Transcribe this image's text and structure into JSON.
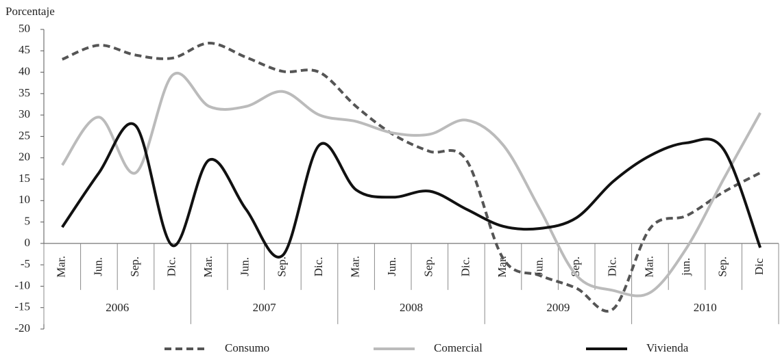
{
  "chart_data": {
    "type": "line",
    "y_label": "Porcentaje",
    "categories": [
      "Mar.",
      "Jun.",
      "Sep.",
      "Dic.",
      "Mar.",
      "Jun.",
      "Sep.",
      "Dic.",
      "Mar.",
      "Jun.",
      "Sep.",
      "Dic.",
      "Mar.",
      "Jun.",
      "Sep.",
      "Dic.",
      "Mar.",
      "jun.",
      "Sep.",
      "Dic"
    ],
    "years": [
      "2006",
      "2007",
      "2008",
      "2009",
      "2010"
    ],
    "series": [
      {
        "name": "Consumo",
        "color": "#555555",
        "dashed": true,
        "values": [
          43,
          46.3,
          44,
          43.3,
          46.8,
          43.5,
          40.2,
          40,
          32,
          25.5,
          21.5,
          19.5,
          -3.5,
          -7.5,
          -10.5,
          -15.3,
          3.5,
          6.5,
          12,
          16.5
        ]
      },
      {
        "name": "Comercial",
        "color": "#bbbbbb",
        "dashed": false,
        "values": [
          18.3,
          29.5,
          16.5,
          39.3,
          32,
          32,
          35.5,
          30,
          28.5,
          25.8,
          25.5,
          28.8,
          23,
          8,
          -7.5,
          -11,
          -11.5,
          -1,
          15,
          30.5
        ]
      },
      {
        "name": "Vivienda",
        "color": "#111111",
        "dashed": false,
        "values": [
          3.8,
          16.5,
          27.5,
          -0.5,
          19.5,
          8,
          -2.8,
          23,
          12.5,
          10.8,
          12.2,
          8,
          4,
          3.5,
          6,
          14.5,
          20.5,
          23.5,
          22,
          -1
        ]
      }
    ],
    "ylim": [
      -20,
      50
    ],
    "yticks": [
      50,
      45,
      40,
      35,
      30,
      25,
      20,
      15,
      10,
      5,
      0,
      -5,
      -10,
      -15,
      -20
    ]
  }
}
